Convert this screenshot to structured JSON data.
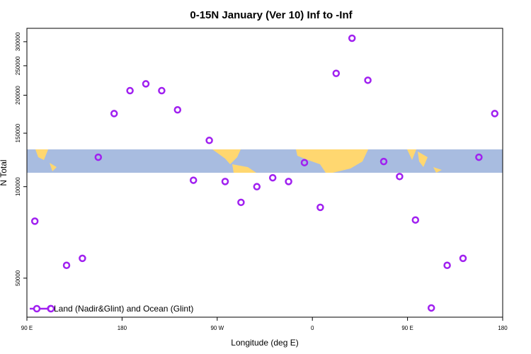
{
  "chart_data": {
    "type": "scatter",
    "title": "0-15N January (Ver 10)   Inf to -Inf",
    "xlabel": "Longitude (deg E)",
    "ylabel": "N Total",
    "series": [
      {
        "name": "Land (Nadir&Glint) and Ocean (Glint)",
        "color": "#a020f0",
        "x": [
          97.5,
          112.5,
          127.5,
          142.5,
          157.5,
          172.5,
          187.5,
          202.5,
          217.5,
          232.5,
          247.5,
          262.5,
          277.5,
          292.5,
          307.5,
          322.5,
          337.5,
          352.5,
          367.5,
          382.5,
          397.5,
          412.5,
          427.5,
          442.5,
          457.5,
          472.5,
          487.5,
          502.5,
          517.5,
          532.5
        ],
        "values": [
          77000,
          39700,
          55100,
          58100,
          125000,
          174000,
          207000,
          218000,
          207000,
          179000,
          105000,
          142000,
          104000,
          88800,
          100000,
          107000,
          104000,
          120000,
          85500,
          236000,
          308000,
          224000,
          121000,
          108000,
          77700,
          39900,
          55100,
          58100,
          125000,
          174000
        ]
      }
    ],
    "xlim": [
      90,
      540
    ],
    "xticks": [
      {
        "value": 90,
        "label": "90 E"
      },
      180,
      {
        "value": 270,
        "label": "90 W"
      },
      {
        "value": 360,
        "label": "0"
      },
      {
        "value": 450,
        "label": "90 E"
      },
      {
        "value": 540,
        "label": "180"
      }
    ],
    "ylim": [
      37200,
      332000
    ],
    "yticks": [
      50000,
      100000,
      150000,
      200000,
      250000,
      300000
    ],
    "log_y": true,
    "legend": "bottom-left"
  }
}
